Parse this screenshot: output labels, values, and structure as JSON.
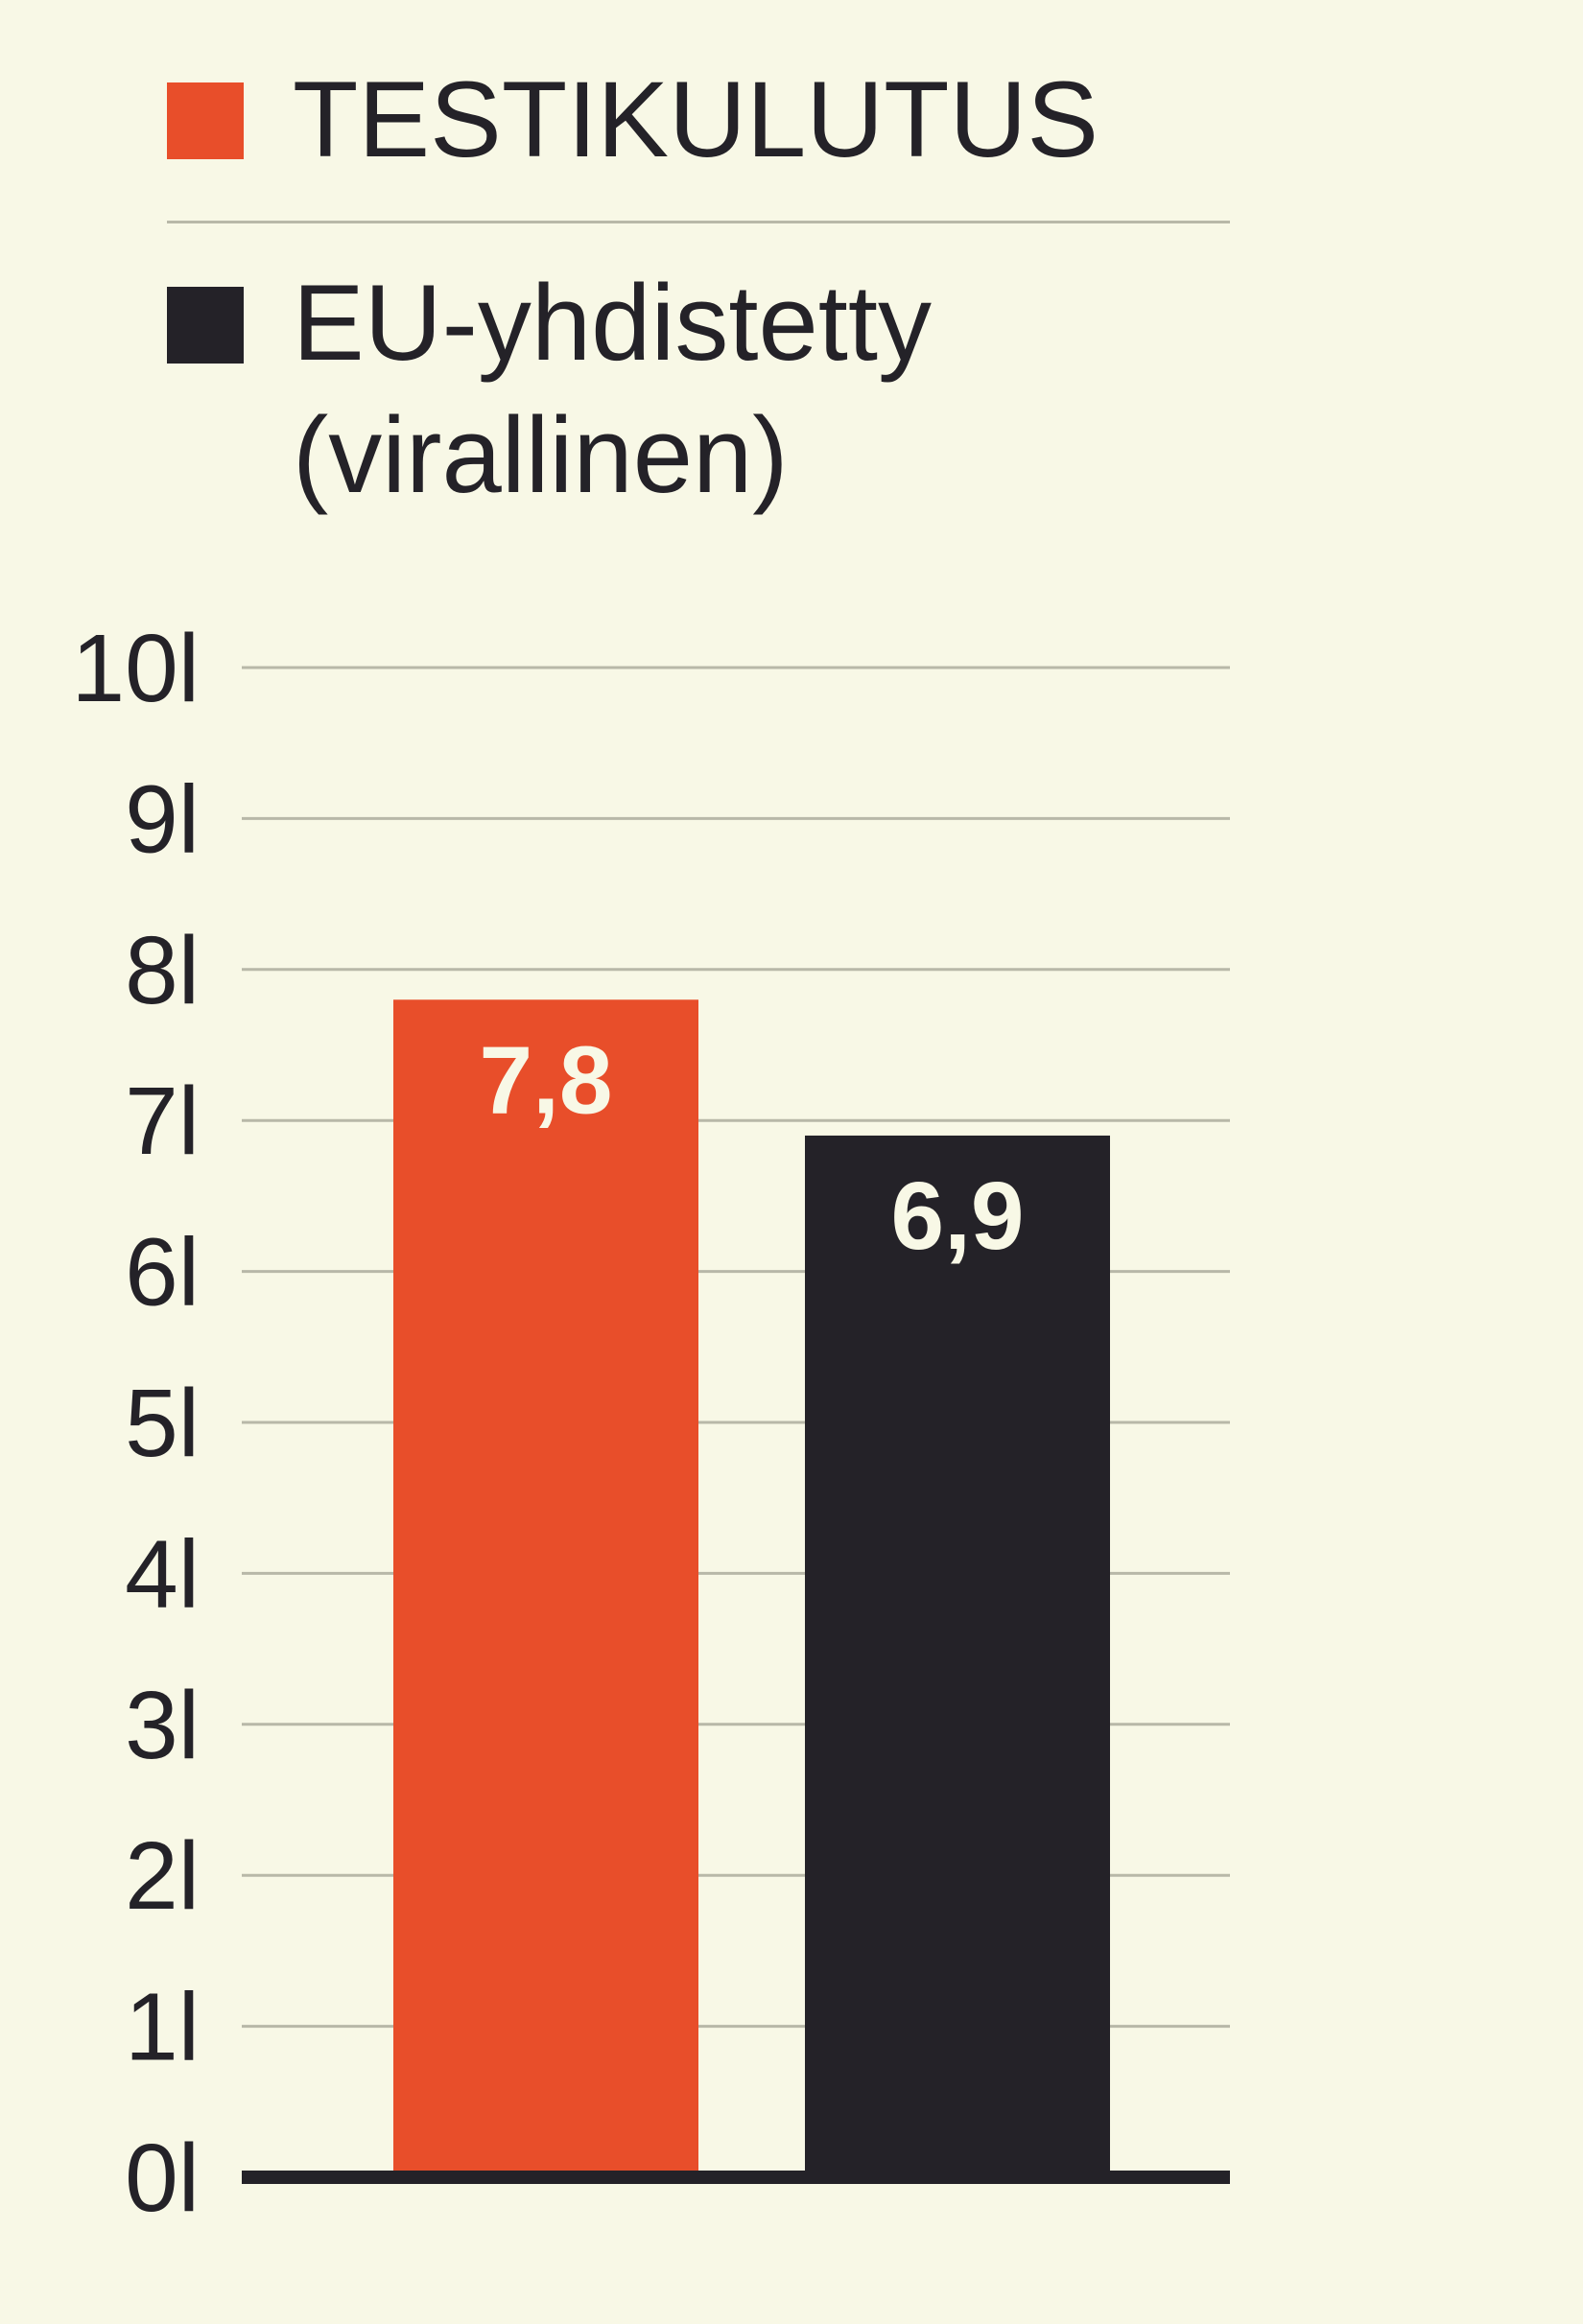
{
  "chart_data": {
    "type": "bar",
    "categories": [
      "TESTIKULUTUS",
      "EU-yhdistetty (virallinen)"
    ],
    "values": [
      7.8,
      6.9
    ],
    "value_labels": [
      "7,8",
      "6,9"
    ],
    "colors": [
      "#e84e2a",
      "#242228"
    ],
    "ylim": [
      0,
      10
    ],
    "yticks": [
      "0l",
      "1l",
      "2l",
      "3l",
      "4l",
      "5l",
      "6l",
      "7l",
      "8l",
      "9l",
      "10l"
    ],
    "grid": true,
    "legend": {
      "placement": "top-left",
      "entries": [
        {
          "lines": [
            "TESTIKULUTUS"
          ],
          "color": "#e84e2a"
        },
        {
          "lines": [
            "EU-yhdistetty",
            "(virallinen)"
          ],
          "color": "#242228"
        }
      ]
    },
    "title": "",
    "xlabel": "",
    "ylabel": ""
  }
}
